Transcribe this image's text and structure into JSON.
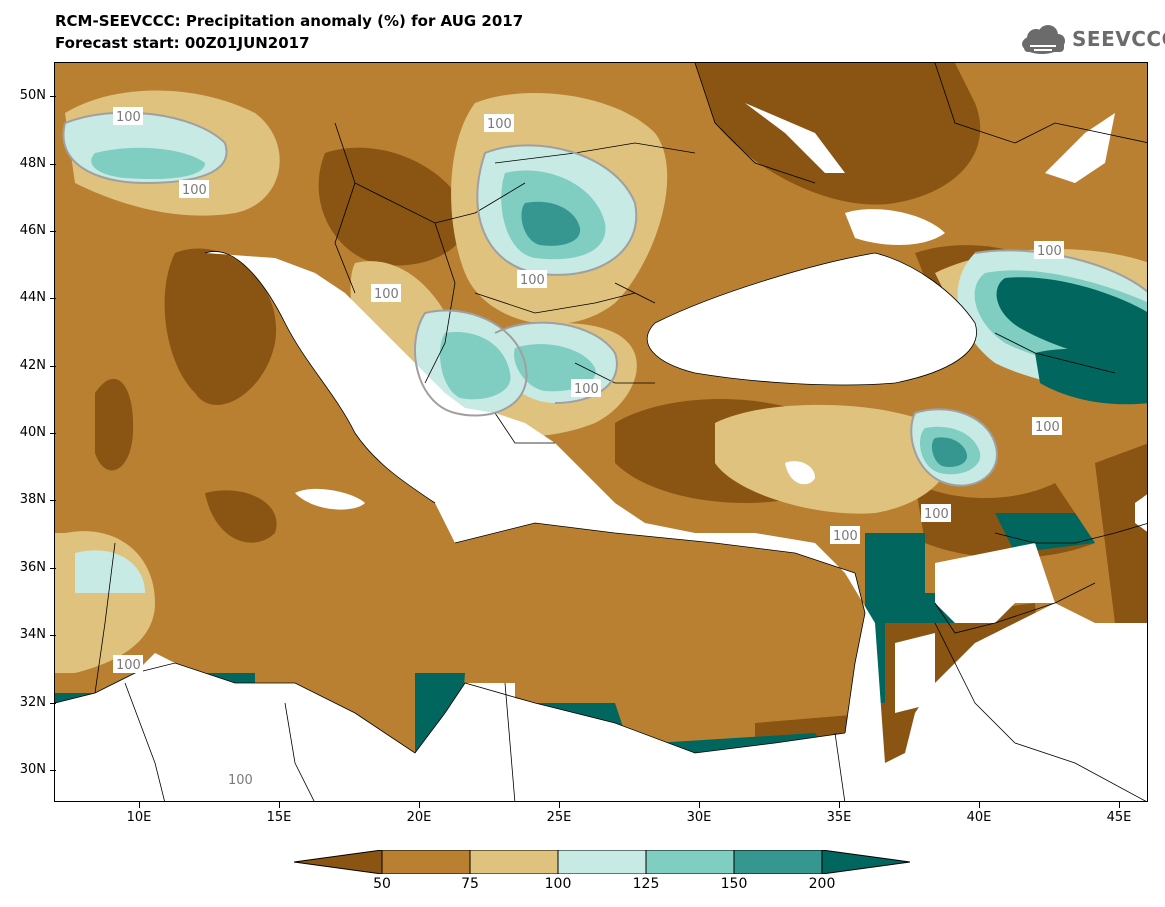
{
  "title": {
    "line1": "RCM-SEEVCCC: Precipitation anomaly (%) for AUG 2017",
    "line2": "Forecast start: 00Z01JUN2017"
  },
  "logo": {
    "text": "SEEVCCC",
    "icon": "cloud-icon"
  },
  "map": {
    "lon_range": [
      "7E",
      "46E"
    ],
    "lat_range": [
      "29N",
      "51N"
    ],
    "lat_labels": [
      "50N",
      "48N",
      "46N",
      "44N",
      "42N",
      "40N",
      "38N",
      "36N",
      "34N",
      "32N",
      "30N"
    ],
    "lon_labels": [
      "10E",
      "15E",
      "20E",
      "25E",
      "30E",
      "35E",
      "40E",
      "45E"
    ],
    "contour_labels": [
      "100",
      "100",
      "100",
      "100",
      "100",
      "100",
      "100",
      "100",
      "100",
      "100",
      "100",
      "100"
    ]
  },
  "legend": {
    "levels": [
      "50",
      "75",
      "100",
      "125",
      "150",
      "200"
    ],
    "colors": {
      "below_50": "#8a5512",
      "c50_75": "#b98032",
      "c75_100": "#dfc27d",
      "c100_125": "#c7eae5",
      "c125_150": "#80cdc1",
      "c150_200": "#35978f",
      "above_200": "#01665e"
    }
  }
}
